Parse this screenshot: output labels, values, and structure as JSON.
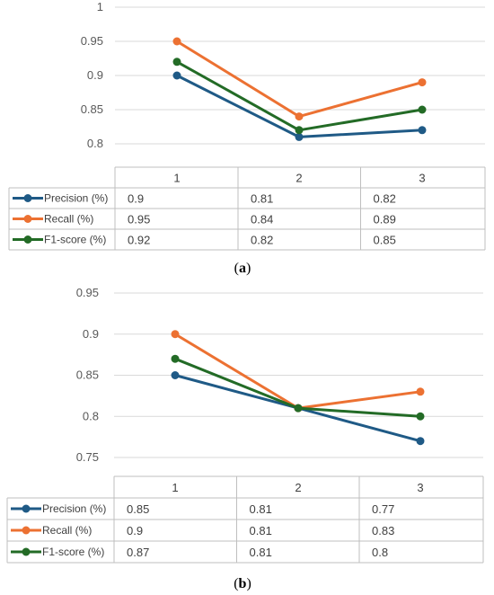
{
  "chart_data": [
    {
      "type": "line",
      "categories": [
        "1",
        "2",
        "3"
      ],
      "ylim": [
        0.8,
        1
      ],
      "yticks": [
        "1",
        "0.95",
        "0.9",
        "0.85",
        "0.8"
      ],
      "ytick_values": [
        1,
        0.95,
        0.9,
        0.85,
        0.8
      ],
      "grid": true,
      "legend": "data-table",
      "series": [
        {
          "name": "Precision (%)",
          "color": "#1f5a86",
          "values": [
            0.9,
            0.81,
            0.82
          ],
          "labels": [
            "0.9",
            "0.81",
            "0.82"
          ]
        },
        {
          "name": "Recall (%)",
          "color": "#ec7132",
          "values": [
            0.95,
            0.84,
            0.89
          ],
          "labels": [
            "0.95",
            "0.84",
            "0.89"
          ]
        },
        {
          "name": "F1-score (%)",
          "color": "#236b26",
          "values": [
            0.92,
            0.82,
            0.85
          ],
          "labels": [
            "0.92",
            "0.82",
            "0.85"
          ]
        }
      ],
      "caption_open": "(",
      "caption_letter": "a",
      "caption_close": ")"
    },
    {
      "type": "line",
      "categories": [
        "1",
        "2",
        "3"
      ],
      "ylim": [
        0.75,
        0.95
      ],
      "yticks": [
        "0.95",
        "0.9",
        "0.85",
        "0.8",
        "0.75"
      ],
      "ytick_values": [
        0.95,
        0.9,
        0.85,
        0.8,
        0.75
      ],
      "grid": true,
      "legend": "data-table",
      "series": [
        {
          "name": "Precision (%)",
          "color": "#1f5a86",
          "values": [
            0.85,
            0.81,
            0.77
          ],
          "labels": [
            "0.85",
            "0.81",
            "0.77"
          ]
        },
        {
          "name": "Recall (%)",
          "color": "#ec7132",
          "values": [
            0.9,
            0.81,
            0.83
          ],
          "labels": [
            "0.9",
            "0.81",
            "0.83"
          ]
        },
        {
          "name": "F1-score (%)",
          "color": "#236b26",
          "values": [
            0.87,
            0.81,
            0.8
          ],
          "labels": [
            "0.87",
            "0.81",
            "0.8"
          ]
        }
      ],
      "caption_open": "(",
      "caption_letter": "b",
      "caption_close": ")"
    }
  ]
}
